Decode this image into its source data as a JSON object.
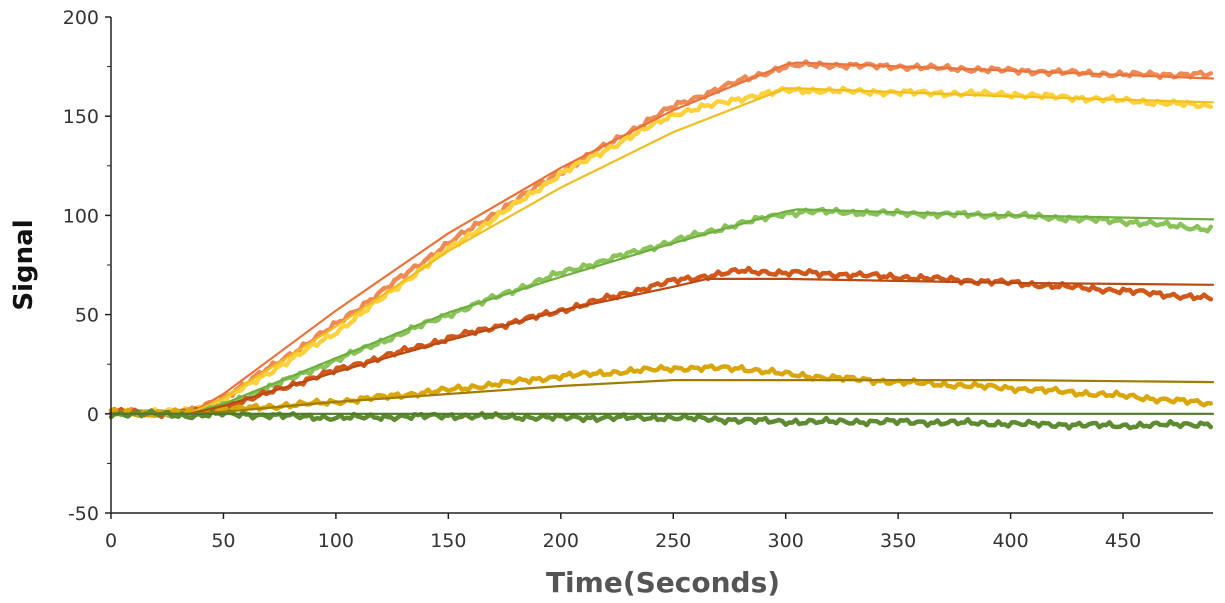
{
  "chart_data": {
    "type": "line",
    "title": "",
    "xlabel": "Time(Seconds)",
    "ylabel": "Signal",
    "xlim": [
      0,
      490
    ],
    "ylim": [
      -50,
      200
    ],
    "x_ticks": [
      0,
      50,
      100,
      150,
      200,
      250,
      300,
      350,
      400,
      450
    ],
    "y_ticks": [
      -50,
      0,
      50,
      100,
      150,
      200
    ],
    "x_tick_labels": [
      "0",
      "50",
      "100",
      "150",
      "200",
      "250",
      "300",
      "350",
      "400",
      "450"
    ],
    "y_tick_labels": [
      "-50",
      "0",
      "50",
      "100",
      "150",
      "200"
    ],
    "grid": false,
    "legend": "none",
    "series": [
      {
        "kind": "measured",
        "color": "#EE8A55",
        "x": [
          0,
          20,
          35,
          50,
          100,
          150,
          200,
          250,
          280,
          300,
          310,
          350,
          400,
          450,
          490
        ],
        "y": [
          1,
          0,
          1,
          8,
          45,
          86,
          122,
          155,
          168,
          175,
          176,
          175,
          173,
          171,
          171
        ]
      },
      {
        "kind": "fit",
        "color": "#E8743B",
        "x": [
          0,
          35,
          50,
          100,
          150,
          200,
          250,
          300,
          305,
          400,
          490
        ],
        "y": [
          0,
          0,
          10,
          52,
          91,
          124,
          153,
          176,
          177,
          173,
          169
        ]
      },
      {
        "kind": "measured",
        "color": "#FDD13C",
        "x": [
          0,
          20,
          35,
          50,
          100,
          150,
          200,
          250,
          280,
          300,
          310,
          350,
          400,
          450,
          490
        ],
        "y": [
          1,
          1,
          1,
          7,
          41,
          83,
          121,
          151,
          159,
          163,
          163,
          162,
          161,
          158,
          155
        ]
      },
      {
        "kind": "fit",
        "color": "#F0BE1E",
        "x": [
          0,
          35,
          50,
          100,
          150,
          200,
          250,
          300,
          305,
          400,
          490
        ],
        "y": [
          0,
          0,
          8,
          44,
          82,
          114,
          142,
          164,
          164,
          160,
          157
        ]
      },
      {
        "kind": "measured",
        "color": "#89C35A",
        "x": [
          0,
          20,
          35,
          50,
          100,
          150,
          200,
          250,
          280,
          300,
          310,
          350,
          400,
          450,
          490
        ],
        "y": [
          1,
          0,
          1,
          4,
          27,
          50,
          71,
          87,
          96,
          101,
          102,
          101,
          100,
          97,
          93
        ]
      },
      {
        "kind": "fit",
        "color": "#6FAE3F",
        "x": [
          0,
          35,
          50,
          100,
          150,
          200,
          250,
          300,
          305,
          400,
          490
        ],
        "y": [
          0,
          0,
          5,
          28,
          51,
          69,
          86,
          102,
          103,
          100,
          98
        ]
      },
      {
        "kind": "measured",
        "color": "#D2571A",
        "x": [
          0,
          20,
          35,
          50,
          100,
          150,
          200,
          250,
          280,
          300,
          310,
          350,
          400,
          450,
          490
        ],
        "y": [
          1,
          0,
          1,
          3,
          22,
          38,
          52,
          67,
          72,
          71,
          71,
          69,
          66,
          62,
          58
        ]
      },
      {
        "kind": "fit",
        "color": "#B94A12",
        "x": [
          0,
          35,
          50,
          100,
          150,
          200,
          250,
          265,
          300,
          400,
          490
        ],
        "y": [
          0,
          0,
          4,
          21,
          37,
          52,
          64,
          68,
          68,
          66,
          65
        ]
      },
      {
        "kind": "measured",
        "color": "#D9A60B",
        "x": [
          0,
          20,
          35,
          50,
          100,
          150,
          200,
          250,
          280,
          300,
          310,
          350,
          400,
          450,
          490
        ],
        "y": [
          1,
          0,
          1,
          2,
          6,
          12,
          19,
          23,
          23,
          20,
          19,
          16,
          13,
          9,
          5
        ]
      },
      {
        "kind": "fit",
        "color": "#A07C00",
        "x": [
          0,
          35,
          50,
          100,
          150,
          200,
          250,
          265,
          300,
          400,
          490
        ],
        "y": [
          0,
          0,
          1,
          6,
          10,
          14,
          17,
          17,
          17,
          17,
          16
        ]
      },
      {
        "kind": "measured",
        "color": "#5E8B32",
        "x": [
          0,
          20,
          35,
          50,
          100,
          150,
          200,
          250,
          300,
          350,
          400,
          450,
          490
        ],
        "y": [
          0,
          0,
          -1,
          0,
          -2,
          -1,
          -2,
          -2,
          -4,
          -4,
          -5,
          -6,
          -5
        ]
      },
      {
        "kind": "fit",
        "color": "#4F7A2A",
        "x": [
          0,
          490
        ],
        "y": [
          0,
          0
        ]
      }
    ]
  }
}
